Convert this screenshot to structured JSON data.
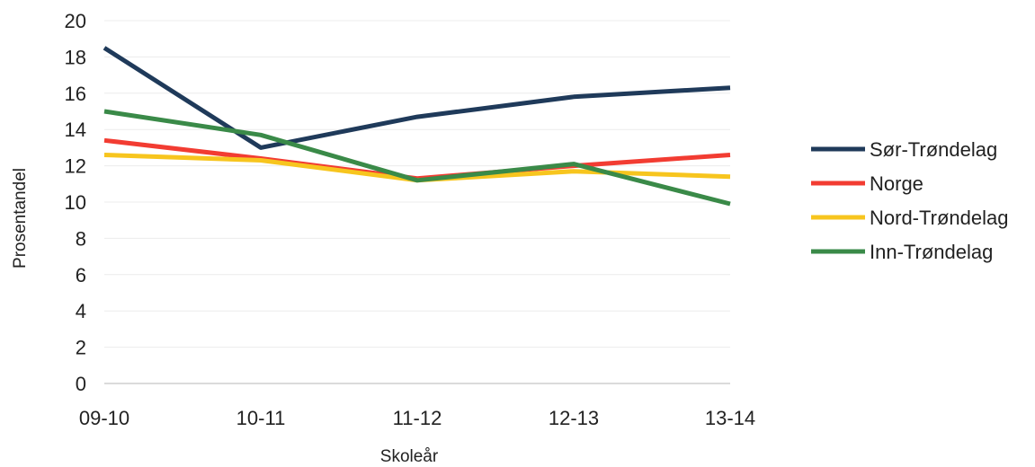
{
  "chart_data": {
    "type": "line",
    "title": "",
    "xlabel": "Skoleår",
    "ylabel": "Prosentandel",
    "categories": [
      "09-10",
      "10-11",
      "11-12",
      "12-13",
      "13-14"
    ],
    "ylim": [
      0,
      20
    ],
    "yticks": [
      0,
      2,
      4,
      6,
      8,
      10,
      12,
      14,
      16,
      18,
      20
    ],
    "grid": true,
    "legend_position": "right",
    "series": [
      {
        "name": "Sør-Trøndelag",
        "color": "#1f3a5a",
        "values": [
          18.5,
          13.0,
          14.7,
          15.8,
          16.3
        ]
      },
      {
        "name": "Norge",
        "color": "#f23c32",
        "values": [
          13.4,
          12.4,
          11.3,
          12.0,
          12.6
        ]
      },
      {
        "name": "Nord-Trøndelag",
        "color": "#f7c51e",
        "values": [
          12.6,
          12.3,
          11.2,
          11.7,
          11.4
        ]
      },
      {
        "name": "Inn-Trøndelag",
        "color": "#3a8a48",
        "values": [
          15.0,
          13.7,
          11.2,
          12.1,
          9.9
        ]
      }
    ]
  }
}
